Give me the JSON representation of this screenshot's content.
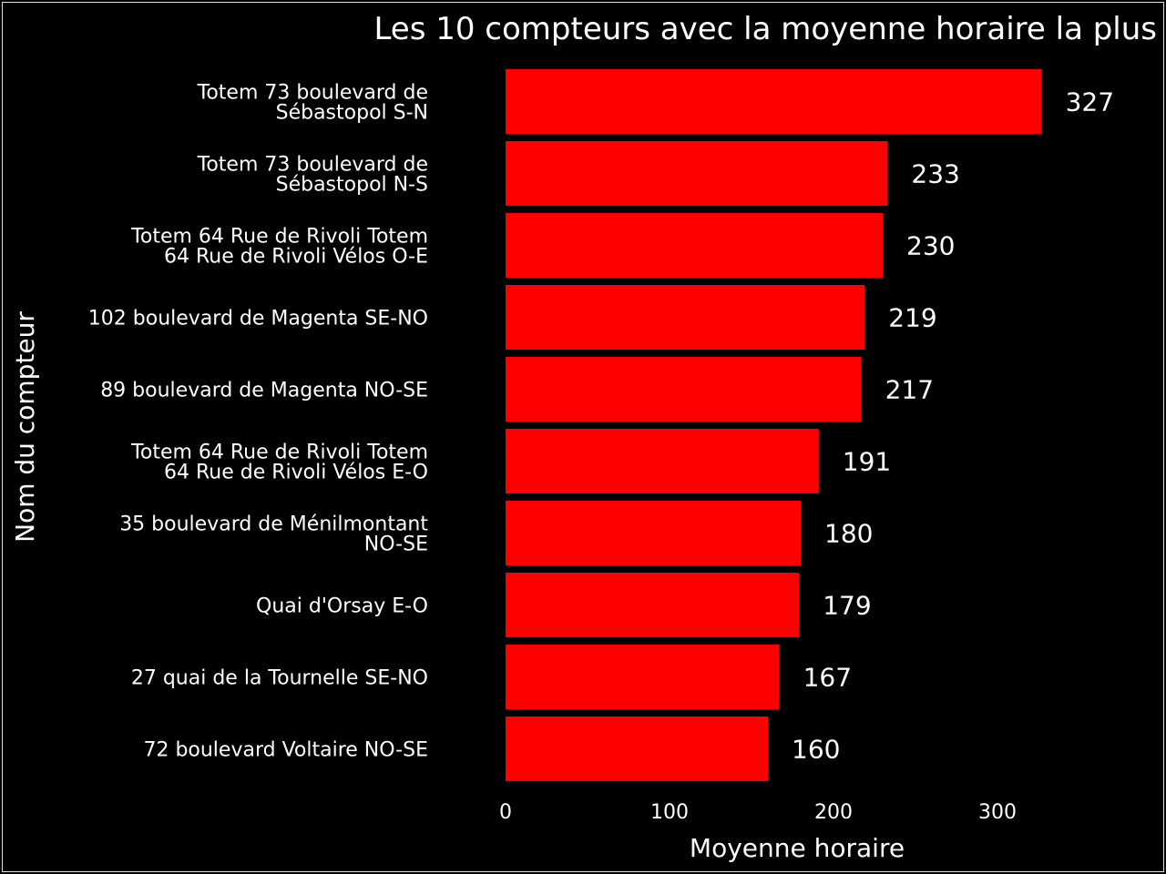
{
  "chart_data": {
    "type": "bar",
    "orientation": "horizontal",
    "title": "Les 10 compteurs avec la moyenne horaire la plus",
    "xlabel": "Moyenne horaire",
    "ylabel": "Nom du compteur",
    "xlim": [
      0,
      370
    ],
    "xticks": [
      0,
      100,
      200,
      300
    ],
    "bar_color": "#ff0000",
    "background": "#000000",
    "text_color": "#ffffff",
    "grid": false,
    "categories": [
      [
        "Totem 73 boulevard de",
        "Sébastopol S-N"
      ],
      [
        "Totem 73 boulevard de",
        "Sébastopol N-S"
      ],
      [
        "Totem 64 Rue de Rivoli Totem",
        "64 Rue de Rivoli Vélos O-E"
      ],
      [
        "102 boulevard de Magenta SE-NO"
      ],
      [
        "89 boulevard de Magenta NO-SE"
      ],
      [
        "Totem 64 Rue de Rivoli Totem",
        "64 Rue de Rivoli Vélos E-O"
      ],
      [
        "35 boulevard de Ménilmontant",
        "NO-SE"
      ],
      [
        "Quai d'Orsay E-O"
      ],
      [
        "27 quai de la Tournelle SE-NO"
      ],
      [
        "72 boulevard Voltaire NO-SE"
      ]
    ],
    "values": [
      327,
      233,
      230,
      219,
      217,
      191,
      180,
      179,
      167,
      160
    ]
  }
}
